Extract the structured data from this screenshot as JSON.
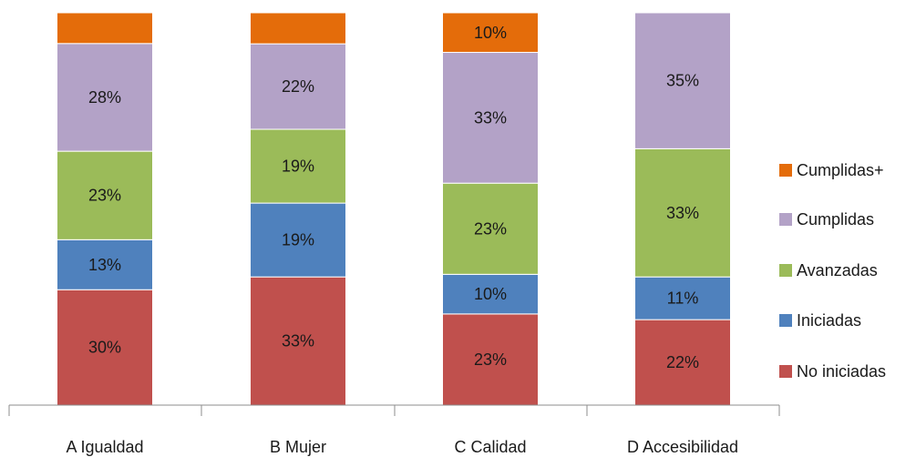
{
  "chart_data": {
    "type": "bar",
    "stacked": true,
    "categories": [
      "A Igualdad",
      "B Mujer",
      "C Calidad",
      "D Accesibilidad"
    ],
    "series": [
      {
        "name": "No iniciadas",
        "color": "#c0504d",
        "values": [
          30,
          33,
          23,
          22
        ],
        "labels": [
          "30%",
          "33%",
          "23%",
          "22%"
        ]
      },
      {
        "name": "Iniciadas",
        "color": "#4f81bd",
        "values": [
          13,
          19,
          10,
          11
        ],
        "labels": [
          "13%",
          "19%",
          "10%",
          "11%"
        ]
      },
      {
        "name": "Avanzadas",
        "color": "#9bbb59",
        "values": [
          23,
          19,
          23,
          33
        ],
        "labels": [
          "23%",
          "19%",
          "23%",
          "33%"
        ]
      },
      {
        "name": "Cumplidas",
        "color": "#b3a2c7",
        "values": [
          28,
          22,
          33,
          35
        ],
        "labels": [
          "28%",
          "22%",
          "33%",
          "35%"
        ]
      },
      {
        "name": "Cumplidas+",
        "color": "#e46c0a",
        "values": [
          8,
          8,
          10,
          0
        ],
        "labels": [
          "",
          "",
          "10%",
          ""
        ]
      }
    ],
    "legend_order": [
      "Cumplidas+",
      "Cumplidas",
      "Avanzadas",
      "Iniciadas",
      "No iniciadas"
    ],
    "legend_position": "right",
    "ylim": [
      0,
      100
    ],
    "grid": false
  }
}
